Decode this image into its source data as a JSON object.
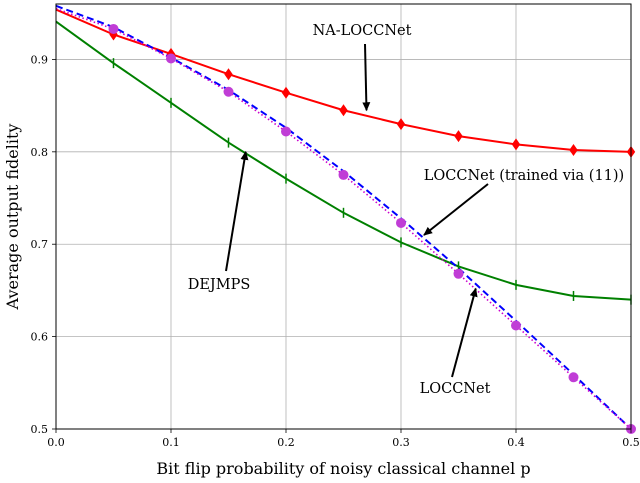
{
  "chart_data": {
    "type": "line",
    "xlabel": "Bit flip probability of noisy classical channel p",
    "ylabel": "Average output fidelity",
    "xlim": [
      0.0,
      0.5
    ],
    "ylim": [
      0.5,
      0.96
    ],
    "x_ticks": [
      0.0,
      0.1,
      0.2,
      0.3,
      0.4,
      0.5
    ],
    "y_ticks": [
      0.5,
      0.6,
      0.7,
      0.8,
      0.9
    ],
    "grid": true,
    "series": [
      {
        "name": "NA-LOCCNet",
        "color": "#ff0000",
        "marker": "diamond",
        "line_style": "solid",
        "x": [
          0.0,
          0.05,
          0.1,
          0.15,
          0.2,
          0.25,
          0.3,
          0.35,
          0.4,
          0.45,
          0.5
        ],
        "y": [
          0.954,
          0.927,
          0.906,
          0.884,
          0.864,
          0.845,
          0.83,
          0.817,
          0.808,
          0.802,
          0.8
        ]
      },
      {
        "name": "DEJMPS",
        "color": "#008000",
        "marker": "vline",
        "line_style": "solid",
        "x": [
          0.0,
          0.05,
          0.1,
          0.15,
          0.2,
          0.25,
          0.3,
          0.35,
          0.4,
          0.45,
          0.5
        ],
        "y": [
          0.941,
          0.896,
          0.853,
          0.81,
          0.771,
          0.734,
          0.702,
          0.676,
          0.656,
          0.644,
          0.64
        ]
      },
      {
        "name": "LOCCNet (trained via (11))",
        "color": "#0000ff",
        "marker": "none",
        "line_style": "dashed",
        "x": [
          0.0,
          0.05,
          0.1,
          0.15,
          0.2,
          0.25,
          0.3,
          0.35,
          0.4,
          0.45,
          0.5
        ],
        "y": [
          0.958,
          0.935,
          0.902,
          0.867,
          0.826,
          0.779,
          0.728,
          0.674,
          0.617,
          0.559,
          0.5
        ]
      },
      {
        "name": "LOCCNet",
        "color": "#cc00cc",
        "marker": "circle",
        "line_style": "dotted",
        "x": [
          0.0,
          0.05,
          0.1,
          0.15,
          0.2,
          0.25,
          0.3,
          0.35,
          0.4,
          0.45,
          0.5
        ],
        "y": [
          0.955,
          0.933,
          0.901,
          0.865,
          0.822,
          0.775,
          0.723,
          0.668,
          0.612,
          0.556,
          0.5
        ]
      }
    ],
    "annotations": [
      {
        "text": "NA-LOCCNet",
        "points_to": [
          0.27,
          0.845
        ]
      },
      {
        "text": "LOCCNet (trained via (11))",
        "points_to": [
          0.32,
          0.71
        ]
      },
      {
        "text": "DEJMPS",
        "points_to": [
          0.165,
          0.8
        ]
      },
      {
        "text": "LOCCNet",
        "points_to": [
          0.365,
          0.652
        ]
      }
    ]
  }
}
